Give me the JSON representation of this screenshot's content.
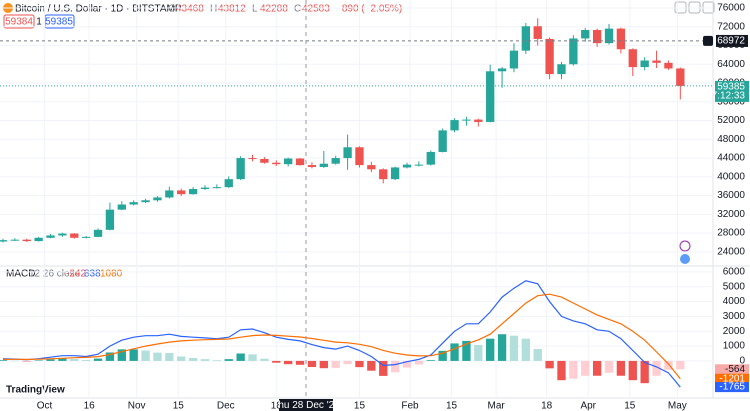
{
  "chart_data": {
    "type": "candlestick",
    "title": "Bitcoin / U.S. Dollar · 1D · BITSTAMP",
    "readout": [
      {
        "label": "O",
        "value": 43468
      },
      {
        "label": "H",
        "value": 43812
      },
      {
        "label": "L",
        "value": 42288
      },
      {
        "label": "C",
        "value": 42583
      }
    ],
    "change": "−890 (−2.05%)",
    "bid": 59384,
    "spread": 1,
    "ask": 59385,
    "colors": {
      "up": "#26a69a",
      "down": "#ef5350"
    },
    "x": [
      "2023-09-17",
      "2023-09-21",
      "2023-09-25",
      "2023-09-29",
      "2023-10-03",
      "2023-10-07",
      "2023-10-11",
      "2023-10-15",
      "2023-10-19",
      "2023-10-23",
      "2023-10-27",
      "2023-10-31",
      "2023-11-04",
      "2023-11-08",
      "2023-11-12",
      "2023-11-16",
      "2023-11-20",
      "2023-11-24",
      "2023-11-28",
      "2023-12-02",
      "2023-12-06",
      "2023-12-10",
      "2023-12-14",
      "2023-12-18",
      "2023-12-22",
      "2023-12-26",
      "2023-12-30",
      "2024-01-03",
      "2024-01-07",
      "2024-01-11",
      "2024-01-15",
      "2024-01-19",
      "2024-01-23",
      "2024-01-27",
      "2024-01-31",
      "2024-02-04",
      "2024-02-08",
      "2024-02-12",
      "2024-02-16",
      "2024-02-20",
      "2024-02-24",
      "2024-02-28",
      "2024-03-03",
      "2024-03-07",
      "2024-03-11",
      "2024-03-15",
      "2024-03-19",
      "2024-03-23",
      "2024-03-27",
      "2024-03-31",
      "2024-04-04",
      "2024-04-08",
      "2024-04-12",
      "2024-04-16",
      "2024-04-20",
      "2024-04-24",
      "2024-04-28",
      "2024-05-02"
    ],
    "open": [
      26200,
      26500,
      26600,
      26300,
      27000,
      27500,
      27900,
      27000,
      27200,
      28700,
      33000,
      34100,
      34600,
      35000,
      35600,
      37100,
      36300,
      37400,
      37700,
      37800,
      39500,
      44000,
      43800,
      43000,
      42700,
      43900,
      42500,
      42100,
      42800,
      44000,
      46300,
      42500,
      41600,
      39500,
      42000,
      42600,
      42600,
      45300,
      49900,
      52100,
      52200,
      51700,
      62500,
      63100,
      66900,
      72100,
      69400,
      61900,
      64000,
      69500,
      71300,
      68500,
      71600,
      67200,
      63400,
      64800,
      64300,
      63100
    ],
    "high": [
      26800,
      26900,
      26800,
      27200,
      27800,
      28100,
      28000,
      27400,
      29000,
      34500,
      34800,
      35000,
      35300,
      35900,
      37900,
      37500,
      37800,
      38200,
      38400,
      40100,
      44400,
      44700,
      44200,
      43500,
      44100,
      44000,
      43100,
      45500,
      44500,
      49000,
      46500,
      43200,
      41800,
      42200,
      43000,
      43300,
      45600,
      50300,
      52500,
      52800,
      52400,
      63900,
      63400,
      68500,
      72800,
      73800,
      69700,
      64500,
      70200,
      71700,
      71600,
      72600,
      71800,
      67400,
      65500,
      66900,
      64800,
      63300
    ],
    "low": [
      26000,
      26300,
      26100,
      26200,
      26900,
      27200,
      26800,
      26900,
      27100,
      28600,
      32900,
      33900,
      34400,
      34700,
      35400,
      35900,
      36200,
      37200,
      37500,
      37600,
      39300,
      43300,
      42800,
      42300,
      42200,
      42400,
      41800,
      41900,
      42600,
      41500,
      42000,
      41000,
      38600,
      39300,
      41800,
      42200,
      42400,
      45200,
      49500,
      50900,
      50700,
      51600,
      59000,
      62300,
      66200,
      68000,
      60800,
      60800,
      63700,
      68800,
      67700,
      68200,
      66300,
      61500,
      62700,
      63200,
      62800,
      56500
    ],
    "close": [
      26500,
      26600,
      26300,
      27000,
      27500,
      27900,
      27000,
      27200,
      28700,
      33000,
      34100,
      34600,
      35000,
      35600,
      37100,
      36300,
      37400,
      37700,
      37800,
      39500,
      44000,
      43800,
      43000,
      42700,
      43900,
      42500,
      42100,
      42800,
      44000,
      46300,
      42500,
      41600,
      39500,
      42000,
      42600,
      42600,
      45300,
      49900,
      52100,
      52200,
      51700,
      62500,
      63100,
      66900,
      72100,
      69400,
      61900,
      64000,
      69500,
      71300,
      68500,
      71600,
      67200,
      63400,
      64800,
      64300,
      63100,
      59385
    ],
    "xlim": [
      "2023-09-16",
      "2024-05-13"
    ],
    "xticks": [
      {
        "value": "2023-10-01",
        "label": "Oct"
      },
      {
        "value": "2023-10-16",
        "label": "16"
      },
      {
        "value": "2023-11-01",
        "label": "Nov"
      },
      {
        "value": "2023-11-15",
        "label": "15"
      },
      {
        "value": "2023-12-01",
        "label": "Dec"
      },
      {
        "value": "2023-12-18",
        "label": "18"
      },
      {
        "value": "2024-01-15",
        "label": "15"
      },
      {
        "value": "2024-02-01",
        "label": "Feb"
      },
      {
        "value": "2024-02-15",
        "label": "15"
      },
      {
        "value": "2024-03-01",
        "label": "Mar"
      },
      {
        "value": "2024-03-18",
        "label": "18"
      },
      {
        "value": "2024-04-01",
        "label": "Apr"
      },
      {
        "value": "2024-04-15",
        "label": "15"
      },
      {
        "value": "2024-05-01",
        "label": "May"
      }
    ],
    "ylim": [
      21200,
      77700
    ],
    "yticks": [
      24000,
      28000,
      32000,
      36000,
      40000,
      44000,
      48000,
      52000,
      56000,
      60000,
      64000,
      68000,
      72000,
      76000
    ],
    "crosshair": {
      "x": "2023-12-28",
      "label": "Thu 28 Dec '23"
    },
    "alert_price": 68972,
    "last_price": 59385,
    "countdown": "17:12:33",
    "macd": {
      "title": "MACD",
      "params": "12 26 close",
      "readout": [
        -242,
        838,
        1080
      ],
      "ylim": [
        -2500,
        6400
      ],
      "yticks": [
        0,
        1000,
        2000,
        3000,
        4000,
        5000,
        6000
      ],
      "macd": {
        "color": "#2962ff",
        "values": [
          150,
          120,
          80,
          150,
          250,
          350,
          350,
          300,
          450,
          1000,
          1400,
          1600,
          1700,
          1700,
          1800,
          1650,
          1600,
          1550,
          1500,
          1600,
          2100,
          2150,
          1900,
          1600,
          1450,
          1350,
          1100,
          900,
          800,
          1000,
          700,
          300,
          -300,
          -250,
          -50,
          100,
          400,
          1200,
          2000,
          2500,
          2500,
          3300,
          4300,
          4900,
          5400,
          5200,
          4000,
          3000,
          2700,
          2500,
          2100,
          2000,
          1500,
          700,
          -100,
          -400,
          -800,
          -1765
        ]
      },
      "signal": {
        "color": "#ff6d00",
        "values": [
          100,
          110,
          105,
          115,
          140,
          180,
          215,
          240,
          290,
          430,
          620,
          820,
          1000,
          1140,
          1270,
          1350,
          1400,
          1430,
          1450,
          1480,
          1600,
          1710,
          1750,
          1720,
          1670,
          1610,
          1510,
          1390,
          1270,
          1220,
          1120,
          960,
          710,
          520,
          400,
          340,
          350,
          520,
          820,
          1150,
          1420,
          1800,
          2500,
          3200,
          3900,
          4400,
          4500,
          4300,
          3900,
          3500,
          3100,
          2800,
          2500,
          2000,
          1400,
          600,
          -200,
          -1201
        ]
      },
      "histogram": {
        "colors": {
          "up": "#26a69a",
          "up_fade": "#b2dfdb",
          "down": "#ef5350",
          "down_fade": "#ffcdd2"
        },
        "values": [
          50,
          10,
          -25,
          35,
          110,
          170,
          135,
          60,
          160,
          570,
          780,
          780,
          700,
          560,
          530,
          300,
          200,
          120,
          50,
          120,
          500,
          440,
          150,
          -120,
          -220,
          -260,
          -410,
          -490,
          -470,
          -220,
          -420,
          -660,
          -1010,
          -770,
          -450,
          -240,
          50,
          680,
          1180,
          1350,
          1080,
          1500,
          1800,
          1700,
          1500,
          800,
          -500,
          -1300,
          -1200,
          -1000,
          -1000,
          -800,
          -1000,
          -1300,
          -1500,
          -1000,
          -600,
          -564
        ]
      }
    },
    "brand": "TradingView"
  }
}
